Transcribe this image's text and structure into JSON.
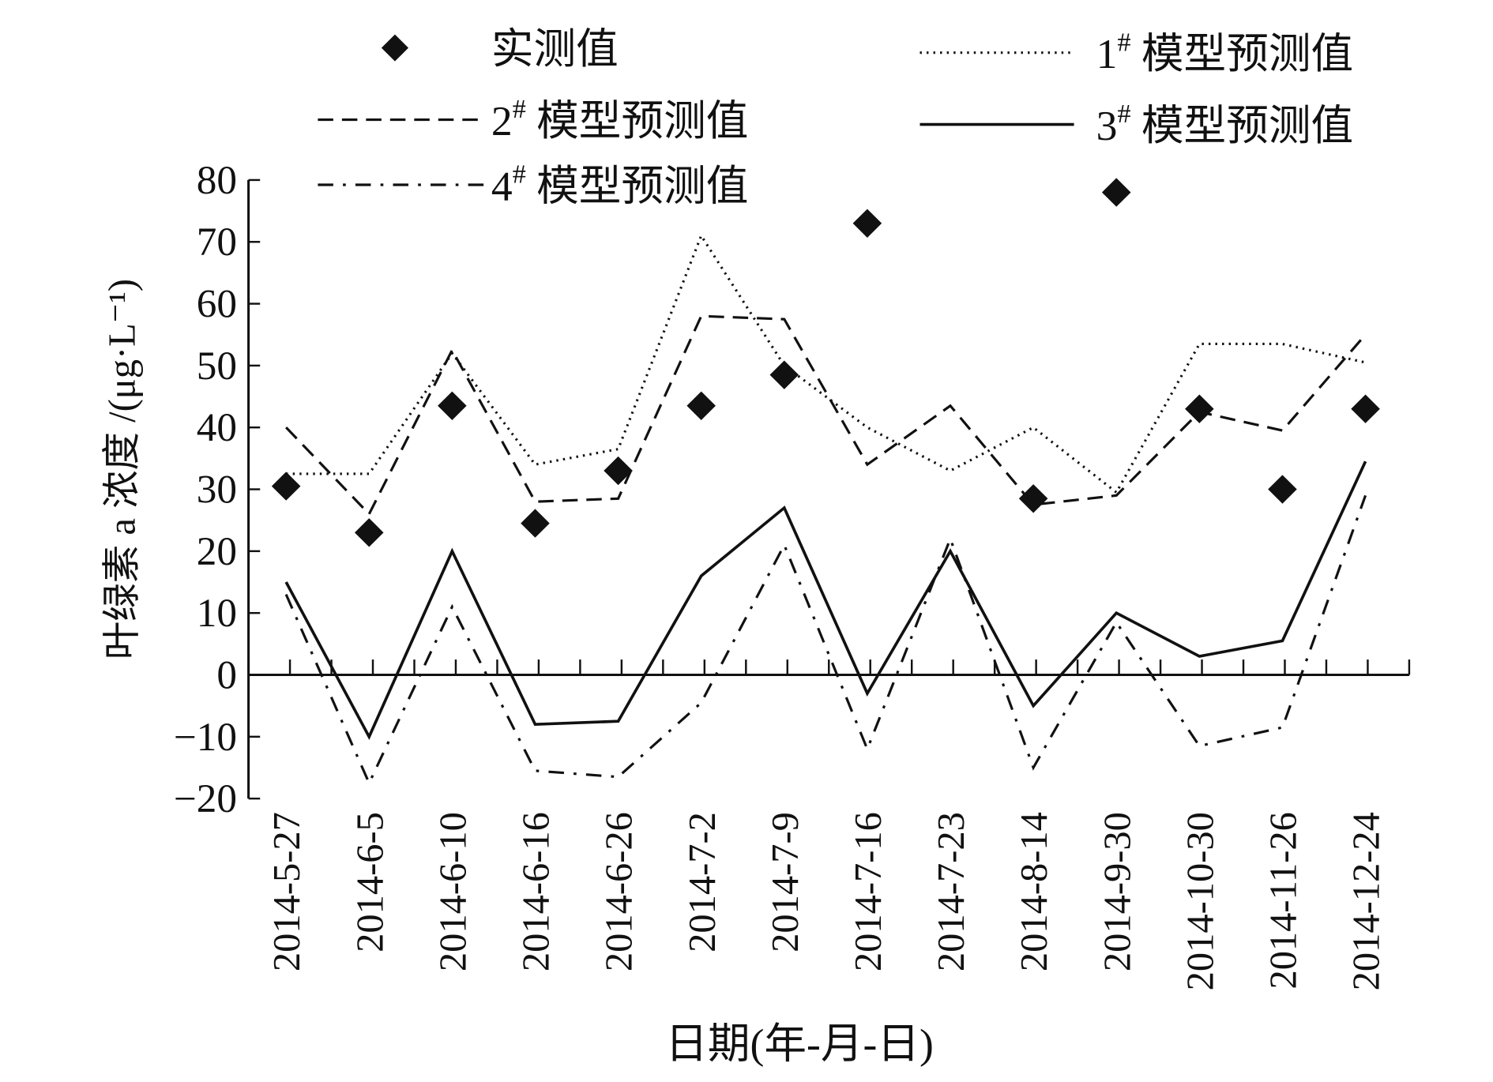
{
  "chart_data": {
    "type": "line",
    "xlabel": "日期(年-月-日)",
    "ylabel": "叶绿素 a 浓度 /(μg·L⁻¹)",
    "ylim": [
      -20,
      80
    ],
    "yticks": [
      -20,
      -10,
      0,
      10,
      20,
      30,
      40,
      50,
      60,
      70,
      80
    ],
    "categories": [
      "2014-5-27",
      "2014-6-5",
      "2014-6-10",
      "2014-6-16",
      "2014-6-26",
      "2014-7-2",
      "2014-7-9",
      "2014-7-16",
      "2014-7-23",
      "2014-8-14",
      "2014-9-30",
      "2014-10-30",
      "2014-11-26",
      "2014-12-24"
    ],
    "grid": false,
    "legend_position": "top",
    "series": [
      {
        "name": "实测值",
        "style": "diamond",
        "values": [
          30.5,
          23,
          43.5,
          24.5,
          33,
          43.5,
          48.5,
          73,
          null,
          28.5,
          78,
          43,
          30,
          43
        ]
      },
      {
        "name": "模型预测值",
        "sup": "#",
        "prefix": "1",
        "style": "dotted",
        "values": [
          32.5,
          32.5,
          52,
          34,
          36.5,
          71,
          50,
          40,
          33,
          40,
          29.5,
          53.5,
          53.5,
          50.5
        ]
      },
      {
        "name": "模型预测值",
        "sup": "#",
        "prefix": "2",
        "style": "dashed",
        "values": [
          40,
          26,
          52.5,
          28,
          28.5,
          58,
          57.5,
          34,
          43.5,
          27.5,
          29,
          42.5,
          39.5,
          55
        ]
      },
      {
        "name": "模型预测值",
        "sup": "#",
        "prefix": "3",
        "style": "solid",
        "values": [
          15,
          -10,
          20,
          -8,
          -7.5,
          16,
          27,
          -3,
          20,
          -5,
          10,
          3,
          5.5,
          34.5
        ]
      },
      {
        "name": "模型预测值",
        "sup": "#",
        "prefix": "4",
        "style": "dashdot",
        "values": [
          13,
          -17.5,
          11,
          -15.5,
          -16.5,
          -4.5,
          21,
          -12,
          22,
          -15,
          8.5,
          -11.5,
          -8.5,
          29
        ]
      }
    ]
  }
}
